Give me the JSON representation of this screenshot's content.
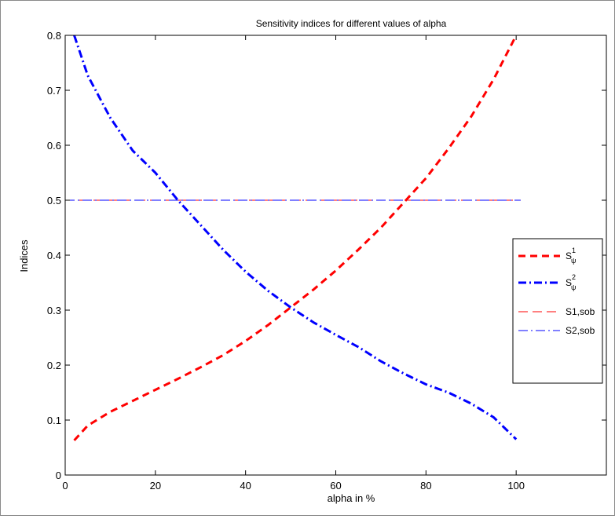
{
  "chart_data": {
    "type": "line",
    "title": "Sensitivity indices for different values of alpha",
    "xlabel": "alpha in %",
    "ylabel": "Indices",
    "xlim": [
      0,
      120
    ],
    "ylim": [
      0,
      0.8
    ],
    "xticks": [
      0,
      20,
      40,
      60,
      80,
      100
    ],
    "xtick_labels": [
      "0",
      "20",
      "40",
      "60",
      "80",
      "100"
    ],
    "yticks": [
      0,
      0.1,
      0.2,
      0.3,
      0.4,
      0.5,
      0.6,
      0.7,
      0.8
    ],
    "ytick_labels": [
      "0",
      "0.1",
      "0.2",
      "0.3",
      "0.4",
      "0.5",
      "0.6",
      "0.7",
      "0.8"
    ],
    "grid": false,
    "legend_position": "right",
    "series": [
      {
        "name": "S",
        "superscript": "1",
        "subscript": "ψ",
        "color": "#ff0000",
        "style": "dashed-thick",
        "x": [
          2,
          5,
          10,
          15,
          20,
          25,
          30,
          35,
          40,
          45,
          50,
          55,
          60,
          65,
          70,
          75,
          80,
          85,
          90,
          95,
          100
        ],
        "values": [
          0.063,
          0.09,
          0.115,
          0.135,
          0.155,
          0.175,
          0.196,
          0.218,
          0.244,
          0.273,
          0.305,
          0.337,
          0.372,
          0.41,
          0.45,
          0.495,
          0.54,
          0.594,
          0.652,
          0.72,
          0.8
        ]
      },
      {
        "name": "S",
        "superscript": "2",
        "subscript": "ψ",
        "color": "#0000ff",
        "style": "dashdot-thick",
        "x": [
          2,
          5,
          10,
          15,
          20,
          25,
          30,
          35,
          40,
          45,
          50,
          55,
          60,
          65,
          70,
          75,
          80,
          85,
          90,
          95,
          100
        ],
        "values": [
          0.8,
          0.727,
          0.65,
          0.59,
          0.55,
          0.5,
          0.455,
          0.41,
          0.37,
          0.335,
          0.305,
          0.278,
          0.255,
          0.233,
          0.207,
          0.185,
          0.165,
          0.15,
          0.13,
          0.105,
          0.065
        ]
      },
      {
        "name": "S1,sob",
        "color": "#ff0000",
        "style": "dashed-thin",
        "x": [
          0,
          101
        ],
        "values": [
          0.5,
          0.5
        ]
      },
      {
        "name": "S2,sob",
        "color": "#0000ff",
        "style": "dashdot-thin",
        "x": [
          0,
          101
        ],
        "values": [
          0.5,
          0.5
        ]
      }
    ]
  }
}
